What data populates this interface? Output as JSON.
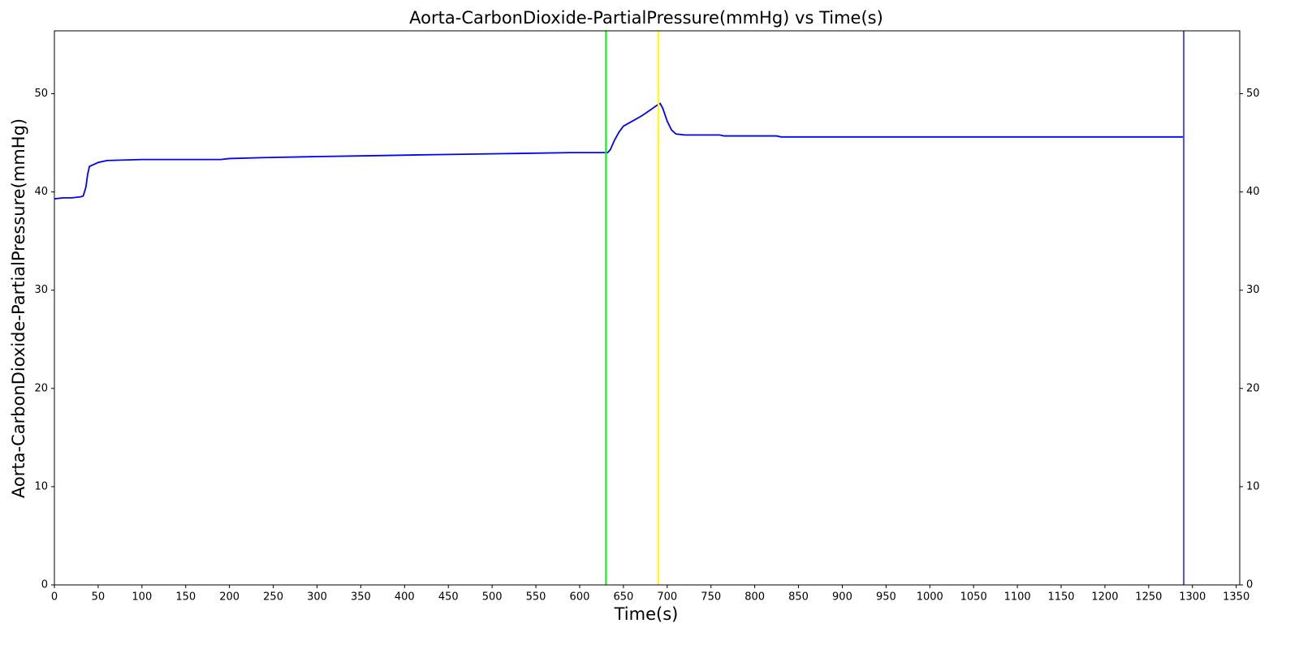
{
  "chart_data": {
    "type": "line",
    "title": "Aorta-CarbonDioxide-PartialPressure(mmHg) vs Time(s)",
    "x_label": "Time(s)",
    "y_label": "Aorta-CarbonDioxide-PartialPressure(mmHg)",
    "x": [
      0,
      10,
      20,
      30,
      33,
      36,
      38,
      40,
      45,
      50,
      60,
      100,
      190,
      200,
      240,
      300,
      370,
      435,
      515,
      590,
      632,
      635,
      640,
      645,
      650,
      660,
      670,
      680,
      688,
      692,
      695,
      700,
      705,
      710,
      720,
      760,
      765,
      825,
      830,
      1000,
      1290
    ],
    "values": [
      39.3,
      39.4,
      39.4,
      39.5,
      39.6,
      40.5,
      41.8,
      42.6,
      42.8,
      43.0,
      43.2,
      43.3,
      43.3,
      43.4,
      43.5,
      43.6,
      43.7,
      43.8,
      43.9,
      44.0,
      44.0,
      44.3,
      45.3,
      46.1,
      46.7,
      47.2,
      47.7,
      48.3,
      48.8,
      49.0,
      48.5,
      47.2,
      46.3,
      45.9,
      45.8,
      45.8,
      45.7,
      45.7,
      45.6,
      45.6,
      45.6
    ],
    "color": "#0000ff",
    "vlines": [
      {
        "x": 630,
        "color": "#00ff00"
      },
      {
        "x": 690,
        "color": "#ffff00"
      },
      {
        "x": 1290,
        "color": "#5050ff"
      }
    ],
    "xlim": [
      0,
      1354
    ],
    "xticks": [
      0,
      50,
      100,
      150,
      200,
      250,
      300,
      350,
      400,
      450,
      500,
      550,
      600,
      650,
      700,
      750,
      800,
      850,
      900,
      950,
      1000,
      1050,
      1100,
      1150,
      1200,
      1250,
      1300,
      1350
    ],
    "ylim": [
      0,
      56.4
    ],
    "yticks": [
      0,
      10,
      20,
      30,
      40,
      50
    ],
    "y2lim": [
      0,
      56.4
    ],
    "y2ticks": [
      0,
      10,
      20,
      30,
      40,
      50
    ],
    "grid": false
  }
}
